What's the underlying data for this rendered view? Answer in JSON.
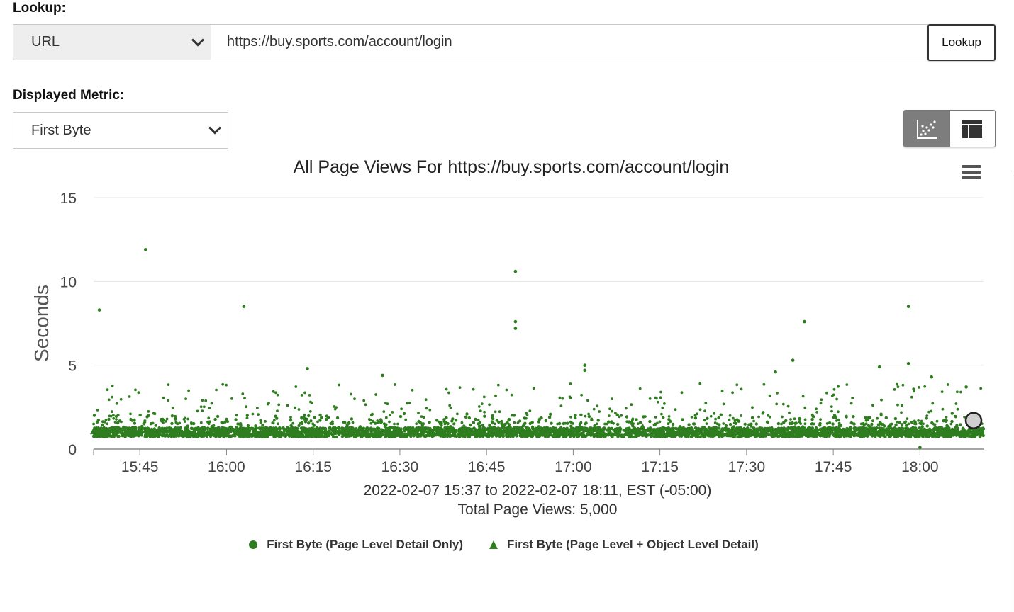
{
  "lookup": {
    "label": "Lookup:",
    "type_selected": "URL",
    "url_value": "https://buy.sports.com/account/login",
    "button_label": "Lookup"
  },
  "metric": {
    "label": "Displayed Metric:",
    "selected": "First Byte"
  },
  "view_toggle": {
    "active": "scatter",
    "options": [
      "scatter-view",
      "table-view"
    ]
  },
  "chart_data": {
    "type": "scatter",
    "title": "All Page Views For https://buy.sports.com/account/login",
    "ylabel": "Seconds",
    "ylim": [
      0,
      15
    ],
    "yticks": [
      "0",
      "5",
      "10",
      "15"
    ],
    "xticks": [
      "15:45",
      "16:00",
      "16:15",
      "16:30",
      "16:45",
      "17:00",
      "17:15",
      "17:30",
      "17:45",
      "18:00"
    ],
    "xrange": [
      "15:37",
      "18:11"
    ],
    "x_caption": "2022-02-07 15:37 to 2022-02-07 18:11, EST (-05:00)",
    "total_caption": "Total Page Views: 5,000",
    "color": "#2e7d1f",
    "grid": true,
    "legend_position": "bottom",
    "series": [
      {
        "name": "First Byte (Page Level Detail Only)",
        "marker": "circle",
        "baseline_seconds": 1.0,
        "notable_points": [
          {
            "x": "15:38",
            "y": 8.3
          },
          {
            "x": "15:46",
            "y": 11.9
          },
          {
            "x": "16:03",
            "y": 8.5
          },
          {
            "x": "16:14",
            "y": 4.8
          },
          {
            "x": "16:27",
            "y": 4.4
          },
          {
            "x": "16:50",
            "y": 10.6
          },
          {
            "x": "16:50",
            "y": 7.6
          },
          {
            "x": "16:50",
            "y": 7.2
          },
          {
            "x": "17:02",
            "y": 5.0
          },
          {
            "x": "17:02",
            "y": 4.7
          },
          {
            "x": "17:35",
            "y": 4.6
          },
          {
            "x": "17:38",
            "y": 5.3
          },
          {
            "x": "17:40",
            "y": 7.6
          },
          {
            "x": "17:53",
            "y": 4.9
          },
          {
            "x": "17:58",
            "y": 8.5
          },
          {
            "x": "17:58",
            "y": 5.1
          },
          {
            "x": "18:02",
            "y": 4.3
          },
          {
            "x": "18:08",
            "y": 3.7
          },
          {
            "x": "18:00",
            "y": 0.1
          }
        ]
      },
      {
        "name": "First Byte (Page Level + Object Level Detail)",
        "marker": "triangle"
      }
    ]
  }
}
